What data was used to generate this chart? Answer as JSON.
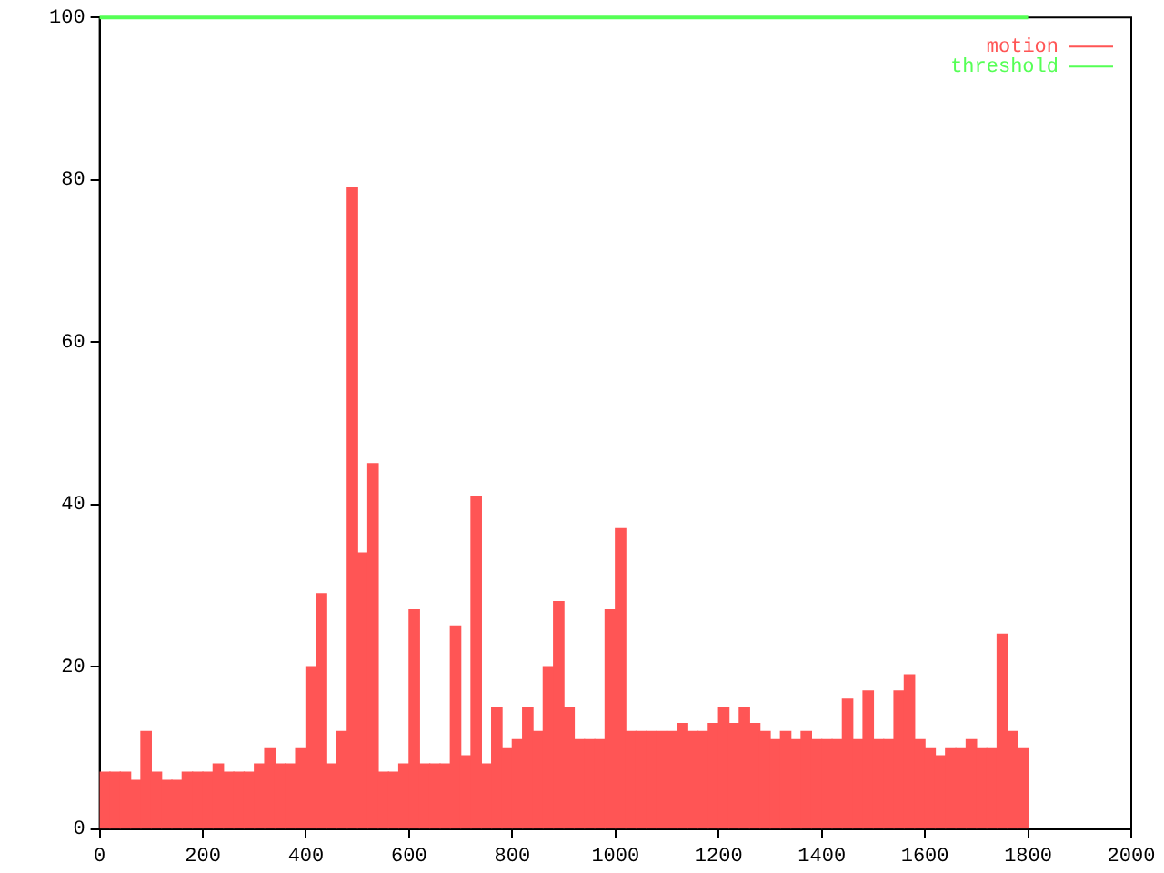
{
  "chart_data": {
    "type": "histogram",
    "bins": [
      0,
      20,
      40,
      60,
      80,
      100,
      120,
      140,
      160,
      180,
      200,
      220,
      240,
      260,
      280,
      300,
      320,
      340,
      360,
      380,
      400,
      420,
      440,
      460,
      480,
      500,
      520,
      540,
      560,
      580,
      600,
      620,
      640,
      660,
      680,
      700,
      720,
      740,
      760,
      780,
      800,
      820,
      840,
      860,
      880,
      900,
      920,
      940,
      960,
      980,
      1000,
      1020,
      1040,
      1060,
      1080,
      1100,
      1120,
      1140,
      1160,
      1180,
      1200,
      1220,
      1240,
      1260,
      1280,
      1300,
      1320,
      1340,
      1360,
      1380,
      1400,
      1420,
      1440,
      1460,
      1480,
      1500,
      1520,
      1540,
      1560,
      1580,
      1600,
      1620,
      1640,
      1660,
      1680,
      1700,
      1720,
      1740,
      1760,
      1780,
      1800
    ],
    "series": [
      {
        "name": "motion",
        "color": "#ff5555",
        "values": [
          7,
          7,
          7,
          6,
          12,
          7,
          6,
          6,
          7,
          7,
          7,
          8,
          7,
          7,
          7,
          8,
          10,
          8,
          8,
          10,
          20,
          29,
          8,
          12,
          79,
          34,
          45,
          7,
          7,
          8,
          27,
          8,
          8,
          8,
          25,
          9,
          41,
          8,
          15,
          10,
          11,
          15,
          12,
          20,
          28,
          15,
          11,
          11,
          11,
          27,
          37,
          12,
          12,
          12,
          12,
          12,
          13,
          12,
          12,
          13,
          15,
          13,
          15,
          13,
          12,
          11,
          12,
          11,
          12,
          11,
          11,
          11,
          16,
          11,
          17,
          11,
          11,
          17,
          19,
          11,
          10,
          9,
          10,
          10,
          11,
          10,
          10,
          24,
          12,
          10
        ]
      },
      {
        "name": "threshold",
        "color": "#55ff55",
        "type": "line",
        "x": [
          0,
          1800
        ],
        "values": [
          100,
          100
        ]
      }
    ],
    "xlim": [
      0,
      2000
    ],
    "xticks": [
      0,
      200,
      400,
      600,
      800,
      1000,
      1200,
      1400,
      1600,
      1800,
      2000
    ],
    "ylim": [
      0,
      100
    ],
    "yticks": [
      0,
      20,
      40,
      60,
      80,
      100
    ],
    "grid": false,
    "legend": "top right"
  }
}
